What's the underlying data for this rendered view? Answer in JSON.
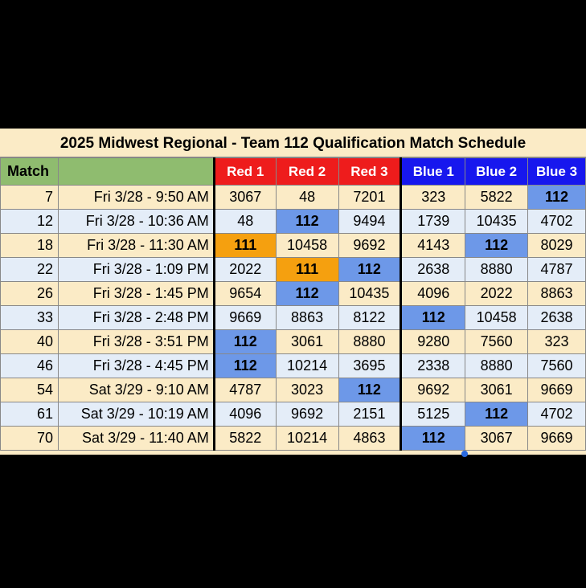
{
  "title": "2025 Midwest Regional - Team 112 Qualification Match Schedule",
  "headers": [
    "Match",
    "",
    "Red 1",
    "Red 2",
    "Red 3",
    "Blue 1",
    "Blue 2",
    "Blue 3"
  ],
  "colors": {
    "red_header": "#ee1c1c",
    "blue_header": "#1717ee",
    "match_header": "#8fbc6f",
    "highlight_team": "#6d98e8",
    "highlight_111": "#f5a00f"
  },
  "rows": [
    {
      "match": "7",
      "time": "Fri 3/28 - 9:50 AM",
      "red": [
        "3067",
        "48",
        "7201"
      ],
      "blue": [
        "323",
        "5822",
        "112"
      ]
    },
    {
      "match": "12",
      "time": "Fri 3/28 - 10:36 AM",
      "red": [
        "48",
        "112",
        "9494"
      ],
      "blue": [
        "1739",
        "10435",
        "4702"
      ]
    },
    {
      "match": "18",
      "time": "Fri 3/28 - 11:30 AM",
      "red": [
        "111",
        "10458",
        "9692"
      ],
      "blue": [
        "4143",
        "112",
        "8029"
      ]
    },
    {
      "match": "22",
      "time": "Fri 3/28 - 1:09 PM",
      "red": [
        "2022",
        "111",
        "112"
      ],
      "blue": [
        "2638",
        "8880",
        "4787"
      ]
    },
    {
      "match": "26",
      "time": "Fri 3/28 - 1:45 PM",
      "red": [
        "9654",
        "112",
        "10435"
      ],
      "blue": [
        "4096",
        "2022",
        "8863"
      ]
    },
    {
      "match": "33",
      "time": "Fri 3/28 - 2:48 PM",
      "red": [
        "9669",
        "8863",
        "8122"
      ],
      "blue": [
        "112",
        "10458",
        "2638"
      ]
    },
    {
      "match": "40",
      "time": "Fri 3/28 - 3:51 PM",
      "red": [
        "112",
        "3061",
        "8880"
      ],
      "blue": [
        "9280",
        "7560",
        "323"
      ]
    },
    {
      "match": "46",
      "time": "Fri 3/28 - 4:45 PM",
      "red": [
        "112",
        "10214",
        "3695"
      ],
      "blue": [
        "2338",
        "8880",
        "7560"
      ]
    },
    {
      "match": "54",
      "time": "Sat 3/29 - 9:10 AM",
      "red": [
        "4787",
        "3023",
        "112"
      ],
      "blue": [
        "9692",
        "3061",
        "9669"
      ]
    },
    {
      "match": "61",
      "time": "Sat 3/29 - 10:19 AM",
      "red": [
        "4096",
        "9692",
        "2151"
      ],
      "blue": [
        "5125",
        "112",
        "4702"
      ]
    },
    {
      "match": "70",
      "time": "Sat 3/29 - 11:40 AM",
      "red": [
        "5822",
        "10214",
        "4863"
      ],
      "blue": [
        "112",
        "3067",
        "9669"
      ]
    }
  ]
}
